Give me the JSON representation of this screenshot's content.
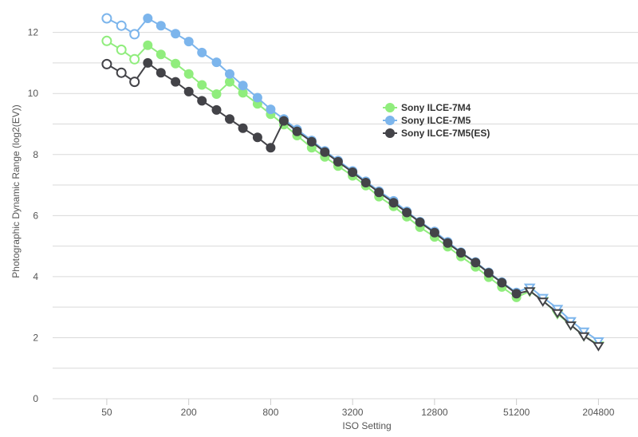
{
  "chart_data": {
    "type": "line",
    "xlabel": "ISO Setting",
    "ylabel": "Photographic Dynamic Range (log2(EV))",
    "x_scale": "log2",
    "x_tick_labels": [
      "50",
      "200",
      "800",
      "3200",
      "12800",
      "51200",
      "204800"
    ],
    "x_ticks": [
      50,
      200,
      800,
      3200,
      12800,
      51200,
      204800
    ],
    "y_ticks": [
      0,
      2,
      4,
      6,
      8,
      10,
      12
    ],
    "ylim": [
      0,
      12.8
    ],
    "xlim": [
      20,
      400000
    ],
    "grid": true,
    "legend_position": "right",
    "x": [
      50,
      64,
      80,
      100,
      125,
      160,
      200,
      250,
      320,
      400,
      500,
      640,
      800,
      1000,
      1250,
      1600,
      2000,
      2500,
      3200,
      4000,
      5000,
      6400,
      8000,
      10000,
      12800,
      16000,
      20000,
      25600,
      32000,
      40000,
      51200,
      64000,
      80000,
      102400,
      128000,
      160000,
      204800
    ],
    "series": [
      {
        "name": "Sony ILCE-7M4",
        "color": "#90ed7d",
        "values": [
          11.72,
          11.43,
          11.12,
          11.58,
          11.28,
          10.98,
          10.64,
          10.28,
          9.98,
          10.38,
          10.02,
          9.66,
          9.32,
          8.98,
          8.62,
          8.22,
          7.92,
          7.62,
          7.3,
          6.98,
          6.62,
          6.3,
          5.96,
          5.62,
          5.3,
          4.98,
          4.66,
          4.32,
          3.98,
          3.66,
          3.32,
          3.52,
          3.22,
          2.78,
          2.42,
          2.06,
          1.76
        ],
        "hollow_points": [
          0,
          1,
          2,
          31,
          32,
          33,
          34,
          35,
          36
        ]
      },
      {
        "name": "Sony ILCE-7M5",
        "color": "#7cb5ec",
        "values": [
          12.46,
          12.22,
          11.94,
          12.46,
          12.22,
          11.96,
          11.7,
          11.34,
          11.02,
          10.64,
          10.26,
          9.86,
          9.48,
          9.16,
          8.82,
          8.46,
          8.12,
          7.8,
          7.46,
          7.12,
          6.8,
          6.48,
          6.14,
          5.8,
          5.48,
          5.14,
          4.8,
          4.48,
          4.14,
          3.82,
          3.48,
          3.66,
          3.32,
          2.96,
          2.56,
          2.22,
          1.9
        ],
        "hollow_points": [
          0,
          1,
          2,
          31,
          32,
          33,
          34,
          35,
          36
        ]
      },
      {
        "name": "Sony ILCE-7M5(ES)",
        "color": "#434348",
        "values": [
          10.96,
          10.68,
          10.38,
          11.0,
          10.68,
          10.38,
          10.06,
          9.76,
          9.46,
          9.16,
          8.86,
          8.56,
          8.22,
          9.1,
          8.76,
          8.42,
          8.08,
          7.76,
          7.42,
          7.08,
          6.76,
          6.42,
          6.1,
          5.78,
          5.44,
          5.1,
          4.78,
          4.46,
          4.12,
          3.8,
          3.44,
          3.54,
          3.2,
          2.82,
          2.42,
          2.06,
          1.74
        ],
        "hollow_points": [
          0,
          1,
          2,
          31,
          32,
          33,
          34,
          35,
          36
        ]
      }
    ]
  }
}
